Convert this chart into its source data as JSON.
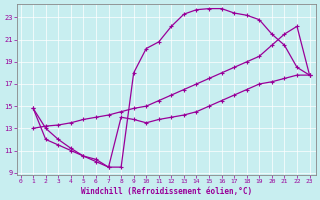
{
  "xlabel": "Windchill (Refroidissement éolien,°C)",
  "xlim": [
    -0.3,
    23.5
  ],
  "ylim": [
    8.8,
    24.2
  ],
  "xticks": [
    0,
    1,
    2,
    3,
    4,
    5,
    6,
    7,
    8,
    9,
    10,
    11,
    12,
    13,
    14,
    15,
    16,
    17,
    18,
    19,
    20,
    21,
    22,
    23
  ],
  "yticks": [
    9,
    11,
    13,
    15,
    17,
    19,
    21,
    23
  ],
  "bg_color": "#c8eef0",
  "line_color": "#990099",
  "curve_upper_x": [
    1,
    2,
    3,
    4,
    5,
    6,
    7,
    8,
    9,
    10,
    11,
    12,
    13,
    14,
    15,
    16,
    17,
    18,
    19,
    20,
    21,
    22,
    23
  ],
  "curve_upper_y": [
    14.8,
    13.0,
    12.0,
    11.2,
    10.5,
    10.0,
    9.5,
    9.5,
    18.0,
    20.2,
    20.8,
    22.2,
    23.3,
    23.7,
    23.8,
    23.8,
    23.4,
    23.2,
    22.8,
    21.5,
    20.5,
    18.5,
    17.8
  ],
  "curve_mid_x": [
    1,
    2,
    3,
    4,
    5,
    6,
    7,
    8,
    9,
    10,
    11,
    12,
    13,
    14,
    15,
    16,
    17,
    18,
    19,
    20,
    21,
    22,
    23
  ],
  "curve_mid_y": [
    13.0,
    13.2,
    13.3,
    13.5,
    13.8,
    14.0,
    14.2,
    14.5,
    14.8,
    15.0,
    15.5,
    16.0,
    16.5,
    17.0,
    17.5,
    18.0,
    18.5,
    19.0,
    19.5,
    20.5,
    21.5,
    22.2,
    17.8
  ],
  "curve_low_x": [
    1,
    2,
    3,
    4,
    5,
    6,
    7,
    8,
    9,
    10,
    11,
    12,
    13,
    14,
    15,
    16,
    17,
    18,
    19,
    20,
    21,
    22,
    23
  ],
  "curve_low_y": [
    14.8,
    12.0,
    11.5,
    11.0,
    10.5,
    10.2,
    9.5,
    14.0,
    13.8,
    13.5,
    13.8,
    14.0,
    14.2,
    14.5,
    15.0,
    15.5,
    16.0,
    16.5,
    17.0,
    17.2,
    17.5,
    17.8,
    17.8
  ]
}
